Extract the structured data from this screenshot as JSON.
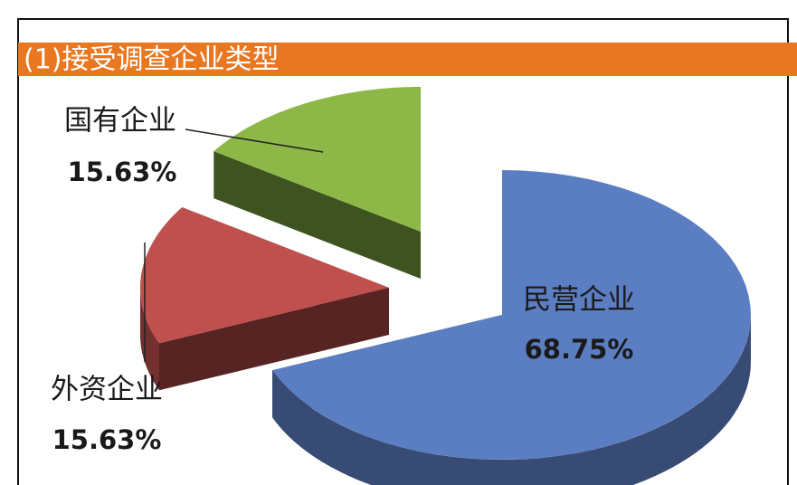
{
  "chart_data": {
    "type": "pie3d",
    "title": "(1)接受调查企业类型",
    "categories": [
      "民营企业",
      "外资企业",
      "国有企业"
    ],
    "values": [
      68.75,
      15.63,
      15.63
    ],
    "value_labels": [
      "68.75%",
      "15.63%",
      "15.63%"
    ],
    "colors": [
      "#5b7dc2",
      "#c0504d",
      "#8db848"
    ]
  }
}
